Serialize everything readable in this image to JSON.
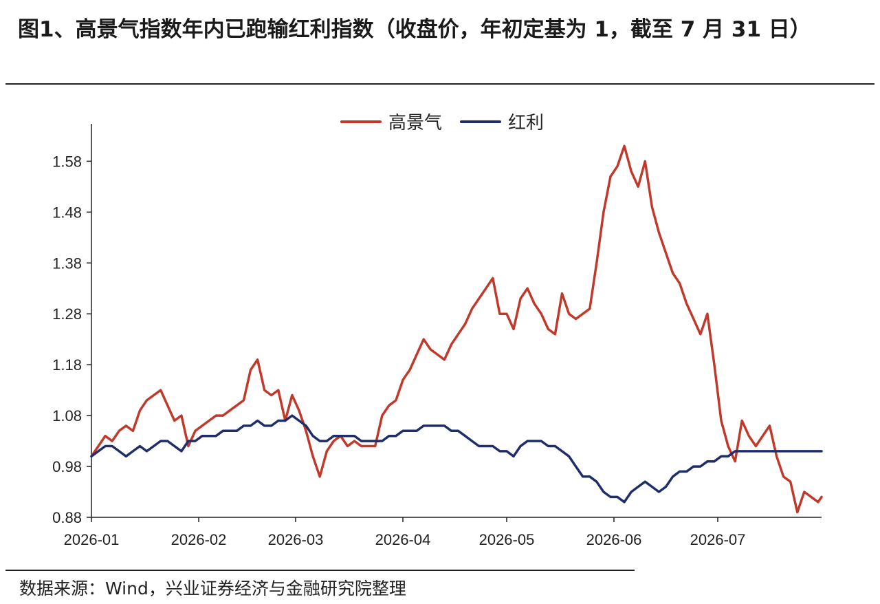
{
  "title": "图1、高景气指数年内已跑输红利指数（收盘价，年初定基为 1，截至 7 月 31 日）",
  "source": "数据来源：Wind，兴业证券经济与金融研究院整理",
  "chart_data": {
    "type": "line",
    "title": "图1、高景气指数年内已跑输红利指数（收盘价，年初定基为 1，截至 7 月 31 日）",
    "xlabel": "",
    "ylabel": "",
    "x_ticks": [
      "2026-01",
      "2026-02",
      "2026-03",
      "2026-04",
      "2026-05",
      "2026-06",
      "2026-07"
    ],
    "y_ticks": [
      0.88,
      0.98,
      1.08,
      1.18,
      1.28,
      1.38,
      1.48,
      1.58
    ],
    "ylim": [
      0.88,
      1.64
    ],
    "xlim": [
      "2026-01-01",
      "2026-07-31"
    ],
    "grid": false,
    "legend_position": "top-center",
    "colors": {
      "高景气": "#c0392b",
      "红利": "#1f2d6b"
    },
    "series": [
      {
        "name": "高景气",
        "x": [
          "2026-01-01",
          "2026-01-03",
          "2026-01-05",
          "2026-01-07",
          "2026-01-09",
          "2026-01-11",
          "2026-01-13",
          "2026-01-15",
          "2026-01-17",
          "2026-01-19",
          "2026-01-21",
          "2026-01-23",
          "2026-01-25",
          "2026-01-27",
          "2026-01-29",
          "2026-01-31",
          "2026-02-02",
          "2026-02-04",
          "2026-02-06",
          "2026-02-08",
          "2026-02-10",
          "2026-02-12",
          "2026-02-14",
          "2026-02-16",
          "2026-02-18",
          "2026-02-20",
          "2026-02-22",
          "2026-02-24",
          "2026-02-26",
          "2026-02-28",
          "2026-03-02",
          "2026-03-04",
          "2026-03-06",
          "2026-03-08",
          "2026-03-10",
          "2026-03-12",
          "2026-03-14",
          "2026-03-16",
          "2026-03-18",
          "2026-03-20",
          "2026-03-22",
          "2026-03-24",
          "2026-03-26",
          "2026-03-28",
          "2026-03-30",
          "2026-04-01",
          "2026-04-03",
          "2026-04-05",
          "2026-04-07",
          "2026-04-09",
          "2026-04-11",
          "2026-04-13",
          "2026-04-15",
          "2026-04-17",
          "2026-04-19",
          "2026-04-21",
          "2026-04-23",
          "2026-04-25",
          "2026-04-27",
          "2026-04-29",
          "2026-05-01",
          "2026-05-03",
          "2026-05-05",
          "2026-05-07",
          "2026-05-09",
          "2026-05-11",
          "2026-05-13",
          "2026-05-15",
          "2026-05-17",
          "2026-05-19",
          "2026-05-21",
          "2026-05-23",
          "2026-05-25",
          "2026-05-27",
          "2026-05-29",
          "2026-05-31",
          "2026-06-02",
          "2026-06-04",
          "2026-06-06",
          "2026-06-08",
          "2026-06-10",
          "2026-06-12",
          "2026-06-14",
          "2026-06-16",
          "2026-06-18",
          "2026-06-20",
          "2026-06-22",
          "2026-06-24",
          "2026-06-26",
          "2026-06-28",
          "2026-06-30",
          "2026-07-02",
          "2026-07-04",
          "2026-07-06",
          "2026-07-08",
          "2026-07-10",
          "2026-07-12",
          "2026-07-14",
          "2026-07-16",
          "2026-07-18",
          "2026-07-20",
          "2026-07-22",
          "2026-07-24",
          "2026-07-26",
          "2026-07-28",
          "2026-07-30",
          "2026-07-31"
        ],
        "values": [
          1.0,
          1.02,
          1.04,
          1.03,
          1.05,
          1.06,
          1.05,
          1.09,
          1.11,
          1.12,
          1.13,
          1.1,
          1.07,
          1.08,
          1.02,
          1.05,
          1.06,
          1.07,
          1.08,
          1.08,
          1.09,
          1.1,
          1.11,
          1.17,
          1.19,
          1.13,
          1.12,
          1.13,
          1.07,
          1.12,
          1.09,
          1.05,
          1.0,
          0.96,
          1.01,
          1.03,
          1.04,
          1.02,
          1.03,
          1.02,
          1.02,
          1.02,
          1.08,
          1.1,
          1.11,
          1.15,
          1.17,
          1.2,
          1.23,
          1.21,
          1.2,
          1.19,
          1.22,
          1.24,
          1.26,
          1.29,
          1.31,
          1.33,
          1.35,
          1.28,
          1.28,
          1.25,
          1.31,
          1.33,
          1.3,
          1.28,
          1.25,
          1.24,
          1.32,
          1.28,
          1.27,
          1.28,
          1.29,
          1.38,
          1.48,
          1.55,
          1.57,
          1.61,
          1.56,
          1.53,
          1.58,
          1.49,
          1.44,
          1.4,
          1.36,
          1.34,
          1.3,
          1.27,
          1.24,
          1.28,
          1.18,
          1.07,
          1.02,
          0.99,
          1.07,
          1.04,
          1.02,
          1.04,
          1.06,
          1.0,
          0.96,
          0.95,
          0.89,
          0.93,
          0.92,
          0.91,
          0.92
        ]
      },
      {
        "name": "红利",
        "x": [
          "2026-01-01",
          "2026-01-03",
          "2026-01-05",
          "2026-01-07",
          "2026-01-09",
          "2026-01-11",
          "2026-01-13",
          "2026-01-15",
          "2026-01-17",
          "2026-01-19",
          "2026-01-21",
          "2026-01-23",
          "2026-01-25",
          "2026-01-27",
          "2026-01-29",
          "2026-01-31",
          "2026-02-02",
          "2026-02-04",
          "2026-02-06",
          "2026-02-08",
          "2026-02-10",
          "2026-02-12",
          "2026-02-14",
          "2026-02-16",
          "2026-02-18",
          "2026-02-20",
          "2026-02-22",
          "2026-02-24",
          "2026-02-26",
          "2026-02-28",
          "2026-03-02",
          "2026-03-04",
          "2026-03-06",
          "2026-03-08",
          "2026-03-10",
          "2026-03-12",
          "2026-03-14",
          "2026-03-16",
          "2026-03-18",
          "2026-03-20",
          "2026-03-22",
          "2026-03-24",
          "2026-03-26",
          "2026-03-28",
          "2026-03-30",
          "2026-04-01",
          "2026-04-03",
          "2026-04-05",
          "2026-04-07",
          "2026-04-09",
          "2026-04-11",
          "2026-04-13",
          "2026-04-15",
          "2026-04-17",
          "2026-04-19",
          "2026-04-21",
          "2026-04-23",
          "2026-04-25",
          "2026-04-27",
          "2026-04-29",
          "2026-05-01",
          "2026-05-03",
          "2026-05-05",
          "2026-05-07",
          "2026-05-09",
          "2026-05-11",
          "2026-05-13",
          "2026-05-15",
          "2026-05-17",
          "2026-05-19",
          "2026-05-21",
          "2026-05-23",
          "2026-05-25",
          "2026-05-27",
          "2026-05-29",
          "2026-05-31",
          "2026-06-02",
          "2026-06-04",
          "2026-06-06",
          "2026-06-08",
          "2026-06-10",
          "2026-06-12",
          "2026-06-14",
          "2026-06-16",
          "2026-06-18",
          "2026-06-20",
          "2026-06-22",
          "2026-06-24",
          "2026-06-26",
          "2026-06-28",
          "2026-06-30",
          "2026-07-02",
          "2026-07-04",
          "2026-07-06",
          "2026-07-08",
          "2026-07-10",
          "2026-07-12",
          "2026-07-14",
          "2026-07-16",
          "2026-07-18",
          "2026-07-20",
          "2026-07-22",
          "2026-07-24",
          "2026-07-26",
          "2026-07-28",
          "2026-07-30",
          "2026-07-31"
        ],
        "values": [
          1.0,
          1.01,
          1.02,
          1.02,
          1.01,
          1.0,
          1.01,
          1.02,
          1.01,
          1.02,
          1.03,
          1.03,
          1.02,
          1.01,
          1.03,
          1.03,
          1.04,
          1.04,
          1.04,
          1.05,
          1.05,
          1.05,
          1.06,
          1.06,
          1.07,
          1.06,
          1.06,
          1.07,
          1.07,
          1.08,
          1.07,
          1.06,
          1.04,
          1.03,
          1.03,
          1.04,
          1.04,
          1.04,
          1.04,
          1.03,
          1.03,
          1.03,
          1.03,
          1.04,
          1.04,
          1.05,
          1.05,
          1.05,
          1.06,
          1.06,
          1.06,
          1.06,
          1.05,
          1.05,
          1.04,
          1.03,
          1.02,
          1.02,
          1.02,
          1.01,
          1.01,
          1.0,
          1.02,
          1.03,
          1.03,
          1.03,
          1.02,
          1.02,
          1.01,
          1.0,
          0.98,
          0.96,
          0.96,
          0.95,
          0.93,
          0.92,
          0.92,
          0.91,
          0.93,
          0.94,
          0.95,
          0.94,
          0.93,
          0.94,
          0.96,
          0.97,
          0.97,
          0.98,
          0.98,
          0.99,
          0.99,
          1.0,
          1.0,
          1.01,
          1.01,
          1.01,
          1.01,
          1.01,
          1.01,
          1.01,
          1.01,
          1.01,
          1.01,
          1.01,
          1.01,
          1.01,
          1.01
        ]
      }
    ]
  }
}
